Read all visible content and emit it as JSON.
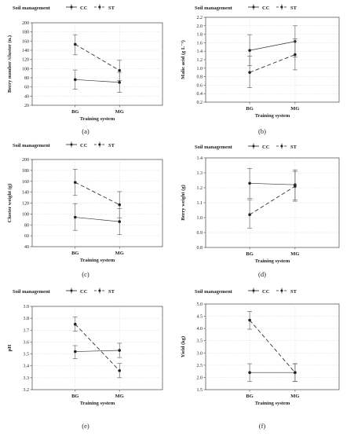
{
  "legend": {
    "title": "Soil management",
    "cc_label": "CC",
    "st_label": "ST"
  },
  "chart_data": [
    {
      "panel": "(a)",
      "type": "line",
      "categories": [
        "BG",
        "MG"
      ],
      "xlabel": "Training system",
      "ylabel": "Berry number /cluster (n.)",
      "ylim": [
        20,
        200
      ],
      "ticks": [
        20,
        40,
        60,
        80,
        100,
        120,
        140,
        160,
        180,
        200
      ],
      "grid": true,
      "series": [
        {
          "name": "CC",
          "values": [
            76,
            70
          ],
          "err": [
            [
              55,
              97
            ],
            [
              48,
              92
            ]
          ],
          "dash": false
        },
        {
          "name": "ST",
          "values": [
            153,
            96
          ],
          "err": [
            [
              130,
              174
            ],
            [
              74,
              118
            ]
          ],
          "dash": true
        }
      ]
    },
    {
      "panel": "(b)",
      "type": "line",
      "categories": [
        "BG",
        "MG"
      ],
      "xlabel": "Training system",
      "ylabel": "Malic acid (g L⁻¹)",
      "ylim": [
        0.2,
        2.2
      ],
      "ticks": [
        0.2,
        0.4,
        0.6,
        0.8,
        1.0,
        1.2,
        1.4,
        1.6,
        1.8,
        2.0,
        2.2
      ],
      "grid": true,
      "series": [
        {
          "name": "CC",
          "values": [
            1.42,
            1.63
          ],
          "err": [
            [
              1.06,
              1.79
            ],
            [
              1.26,
              2.0
            ]
          ],
          "dash": false
        },
        {
          "name": "ST",
          "values": [
            0.9,
            1.32
          ],
          "err": [
            [
              0.54,
              1.28
            ],
            [
              0.96,
              1.69
            ]
          ],
          "dash": true
        }
      ]
    },
    {
      "panel": "(c)",
      "type": "line",
      "categories": [
        "BG",
        "MG"
      ],
      "xlabel": "Training system",
      "ylabel": "Cluster weight (g)",
      "ylim": [
        40,
        200
      ],
      "ticks": [
        40,
        60,
        80,
        100,
        120,
        140,
        160,
        180,
        200
      ],
      "grid": true,
      "series": [
        {
          "name": "CC",
          "values": [
            94,
            86
          ],
          "err": [
            [
              70,
              119
            ],
            [
              62,
              110
            ]
          ],
          "dash": false
        },
        {
          "name": "ST",
          "values": [
            158,
            117
          ],
          "err": [
            [
              134,
              182
            ],
            [
              93,
              141
            ]
          ],
          "dash": true
        }
      ]
    },
    {
      "panel": "(d)",
      "type": "line",
      "categories": [
        "BG",
        "MG"
      ],
      "xlabel": "Training system",
      "ylabel": "Berry weight (g)",
      "ylim": [
        0.8,
        1.4
      ],
      "ticks": [
        0.8,
        0.9,
        1.0,
        1.1,
        1.2,
        1.3,
        1.4
      ],
      "grid": true,
      "series": [
        {
          "name": "CC",
          "values": [
            1.23,
            1.22
          ],
          "err": [
            [
              1.13,
              1.33
            ],
            [
              1.12,
              1.32
            ]
          ],
          "dash": false
        },
        {
          "name": "ST",
          "values": [
            1.02,
            1.21
          ],
          "err": [
            [
              0.93,
              1.12
            ],
            [
              1.11,
              1.31
            ]
          ],
          "dash": true
        }
      ]
    },
    {
      "panel": "(e)",
      "type": "line",
      "categories": [
        "BG",
        "MG"
      ],
      "xlabel": "Training system",
      "ylabel": "pH",
      "ylim": [
        3.2,
        3.9
      ],
      "ticks": [
        3.2,
        3.3,
        3.4,
        3.5,
        3.6,
        3.7,
        3.8,
        3.9
      ],
      "grid": true,
      "series": [
        {
          "name": "CC",
          "values": [
            3.52,
            3.53
          ],
          "err": [
            [
              3.46,
              3.57
            ],
            [
              3.47,
              3.59
            ]
          ],
          "dash": false
        },
        {
          "name": "ST",
          "values": [
            3.75,
            3.36
          ],
          "err": [
            [
              3.69,
              3.81
            ],
            [
              3.3,
              3.42
            ]
          ],
          "dash": true
        }
      ]
    },
    {
      "panel": "(f)",
      "type": "line",
      "categories": [
        "BG",
        "MG"
      ],
      "xlabel": "Training system",
      "ylabel": "Yield (kg)",
      "ylim": [
        1.5,
        5.0
      ],
      "ticks": [
        1.5,
        2.0,
        2.5,
        3.0,
        3.5,
        4.0,
        4.5,
        5.0
      ],
      "grid": true,
      "series": [
        {
          "name": "CC",
          "values": [
            2.2,
            2.2
          ],
          "err": [
            [
              1.84,
              2.56
            ],
            [
              1.84,
              2.56
            ]
          ],
          "dash": false
        },
        {
          "name": "ST",
          "values": [
            4.34,
            2.2
          ],
          "err": [
            [
              3.97,
              4.7
            ],
            [
              1.84,
              2.56
            ]
          ],
          "dash": true
        }
      ]
    }
  ]
}
